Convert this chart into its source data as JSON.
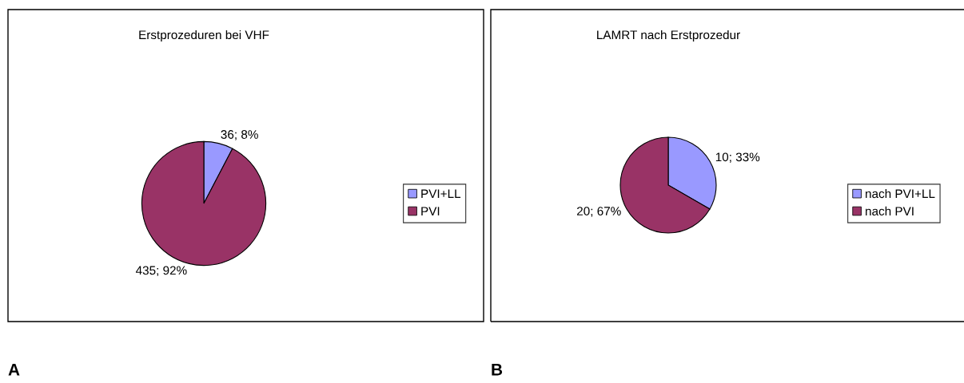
{
  "chart_data": [
    {
      "type": "pie",
      "title": "Erstprozeduren bei VHF",
      "categories": [
        "PVI+LL",
        "PVI"
      ],
      "values": [
        36,
        435
      ],
      "colors": [
        "#9999ff",
        "#993366"
      ],
      "value_labels": [
        "36; 8%",
        "435; 92%"
      ],
      "legend": "right",
      "annotations": [
        "A"
      ]
    },
    {
      "type": "pie",
      "title": "LAMRT nach Erstprozedur",
      "categories": [
        "nach PVI+LL",
        "nach PVI"
      ],
      "values": [
        10,
        20
      ],
      "colors": [
        "#9999ff",
        "#993366"
      ],
      "value_labels": [
        "10; 33%",
        "20; 67%"
      ],
      "legend": "right",
      "annotations": [
        "B"
      ]
    }
  ]
}
